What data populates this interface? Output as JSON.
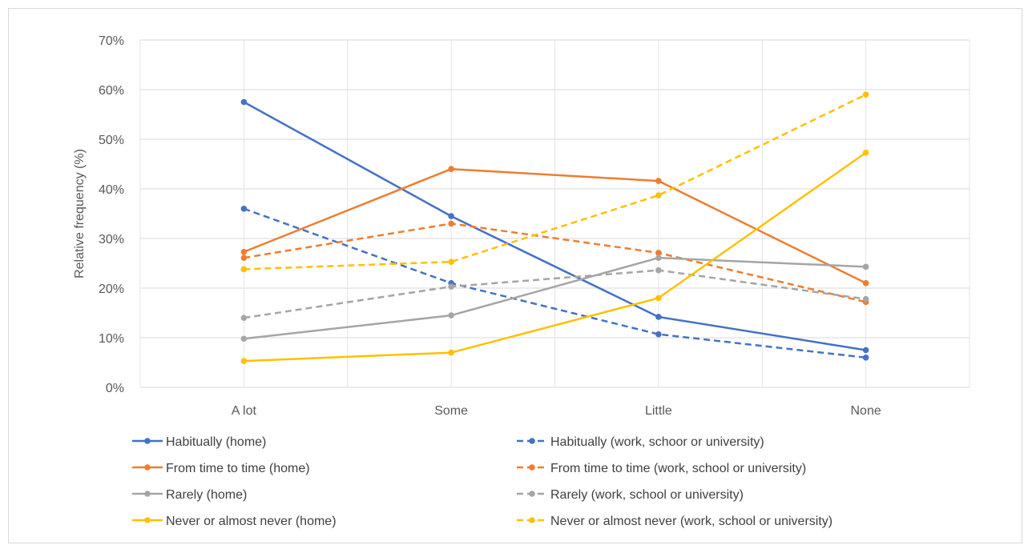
{
  "chart_data": {
    "type": "line",
    "title": "",
    "xlabel": "",
    "ylabel": "Relative frequency (%)",
    "categories": [
      "A lot",
      "Some",
      "Little",
      "None"
    ],
    "ylim": [
      0,
      70
    ],
    "yticks": [
      0,
      10,
      20,
      30,
      40,
      50,
      60,
      70
    ],
    "ytick_labels": [
      "0%",
      "10%",
      "20%",
      "30%",
      "40%",
      "50%",
      "60%",
      "70%"
    ],
    "grid": true,
    "legend_position": "bottom",
    "series": [
      {
        "name": "Habitually (home)",
        "values": [
          57.5,
          34.5,
          14.2,
          7.5
        ],
        "color": "#4472C4",
        "dashed": false
      },
      {
        "name": "Habitually (work, schoor or university)",
        "values": [
          36.0,
          21.0,
          10.7,
          6.0
        ],
        "color": "#4472C4",
        "dashed": true
      },
      {
        "name": "From time to time (home)",
        "values": [
          27.3,
          44.0,
          41.6,
          21.0
        ],
        "color": "#ED7D31",
        "dashed": false
      },
      {
        "name": "From time to time (work, school or university)",
        "values": [
          26.1,
          33.0,
          27.1,
          17.2
        ],
        "color": "#ED7D31",
        "dashed": true
      },
      {
        "name": "Rarely (home)",
        "values": [
          9.8,
          14.5,
          26.1,
          24.3
        ],
        "color": "#A5A5A5",
        "dashed": false
      },
      {
        "name": "Rarely (work, school or university)",
        "values": [
          14.0,
          20.3,
          23.6,
          17.8
        ],
        "color": "#A5A5A5",
        "dashed": true
      },
      {
        "name": "Never or almost never (home)",
        "values": [
          5.3,
          7.0,
          18.0,
          47.3
        ],
        "color": "#FFC000",
        "dashed": false
      },
      {
        "name": "Never or almost never (work, school or university)",
        "values": [
          23.8,
          25.3,
          38.7,
          59.0
        ],
        "color": "#FFC000",
        "dashed": true
      }
    ]
  }
}
